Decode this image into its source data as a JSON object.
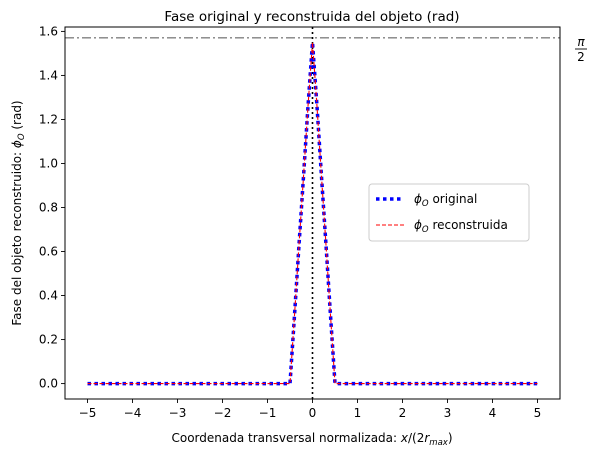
{
  "chart_data": {
    "type": "line",
    "title": "Fase original y reconstruida del objeto (rad)",
    "xlabel": "Coordenada transversal normalizada: x/(2r_max)",
    "ylabel": "Fase del objeto reconstruido: ϕ_O (rad)",
    "xlim": [
      -5.5,
      5.5
    ],
    "ylim": [
      -0.07,
      1.62
    ],
    "xticks": [
      -5,
      -4,
      -3,
      -2,
      -1,
      0,
      1,
      2,
      3,
      4,
      5
    ],
    "xtick_labels": [
      "−5",
      "−4",
      "−3",
      "−2",
      "−1",
      "0",
      "1",
      "2",
      "3",
      "4",
      "5"
    ],
    "yticks": [
      0.0,
      0.2,
      0.4,
      0.6,
      0.8,
      1.0,
      1.2,
      1.4,
      1.6
    ],
    "ytick_labels": [
      "0.0",
      "0.2",
      "0.4",
      "0.6",
      "0.8",
      "1.0",
      "1.2",
      "1.4",
      "1.6"
    ],
    "grid": false,
    "legend_position": "center-right",
    "reference_lines": [
      {
        "orientation": "horizontal",
        "value": 1.5708,
        "style": "dashdot",
        "color": "#808080",
        "label_num": "π",
        "label_den": "2"
      },
      {
        "orientation": "vertical",
        "value": 0,
        "style": "dotted",
        "color": "#000000"
      }
    ],
    "series": [
      {
        "name": "ϕ_O original",
        "color": "#0000ff",
        "style": "dotted",
        "x": [
          -5.0,
          -4.75,
          -4.5,
          -4.25,
          -4.0,
          -3.75,
          -3.5,
          -3.25,
          -3.0,
          -2.75,
          -2.5,
          -2.25,
          -2.0,
          -1.75,
          -1.5,
          -1.25,
          -1.0,
          -0.75,
          -0.5,
          -0.4,
          -0.3,
          -0.2,
          -0.1,
          0.0,
          0.1,
          0.2,
          0.3,
          0.4,
          0.5,
          0.75,
          1.0,
          1.25,
          1.5,
          1.75,
          2.0,
          2.25,
          2.5,
          2.75,
          3.0,
          3.25,
          3.5,
          3.75,
          4.0,
          4.25,
          4.5,
          4.75,
          5.0
        ],
        "y": [
          0.0,
          0.0,
          0.0,
          0.0,
          0.0,
          0.0,
          0.0,
          0.0,
          0.0,
          0.0,
          0.0,
          0.0,
          0.0,
          0.0,
          0.0,
          0.0,
          0.0,
          0.0,
          0.0,
          0.31,
          0.63,
          0.94,
          1.26,
          1.55,
          1.26,
          0.94,
          0.63,
          0.31,
          0.0,
          0.0,
          0.0,
          0.0,
          0.0,
          0.0,
          0.0,
          0.0,
          0.0,
          0.0,
          0.0,
          0.0,
          0.0,
          0.0,
          0.0,
          0.0,
          0.0,
          0.0,
          0.0
        ]
      },
      {
        "name": "ϕ_O reconstruida",
        "color": "#ff0000",
        "style": "dashed",
        "x": [
          -5.0,
          -4.75,
          -4.5,
          -4.25,
          -4.0,
          -3.75,
          -3.5,
          -3.25,
          -3.0,
          -2.75,
          -2.5,
          -2.25,
          -2.0,
          -1.75,
          -1.5,
          -1.25,
          -1.0,
          -0.75,
          -0.5,
          -0.4,
          -0.3,
          -0.2,
          -0.1,
          0.0,
          0.1,
          0.2,
          0.3,
          0.4,
          0.5,
          0.75,
          1.0,
          1.25,
          1.5,
          1.75,
          2.0,
          2.25,
          2.5,
          2.75,
          3.0,
          3.25,
          3.5,
          3.75,
          4.0,
          4.25,
          4.5,
          4.75,
          5.0
        ],
        "y": [
          0.0,
          0.0,
          0.0,
          0.0,
          0.0,
          0.0,
          0.0,
          0.0,
          0.0,
          0.0,
          0.0,
          0.0,
          0.0,
          0.0,
          0.0,
          0.0,
          0.0,
          0.0,
          0.0,
          0.31,
          0.63,
          0.94,
          1.26,
          1.55,
          1.26,
          0.94,
          0.63,
          0.31,
          0.0,
          0.0,
          0.0,
          0.0,
          0.0,
          0.0,
          0.0,
          0.0,
          0.0,
          0.0,
          0.0,
          0.0,
          0.0,
          0.0,
          0.0,
          0.0,
          0.0,
          0.0,
          0.0
        ]
      }
    ]
  }
}
